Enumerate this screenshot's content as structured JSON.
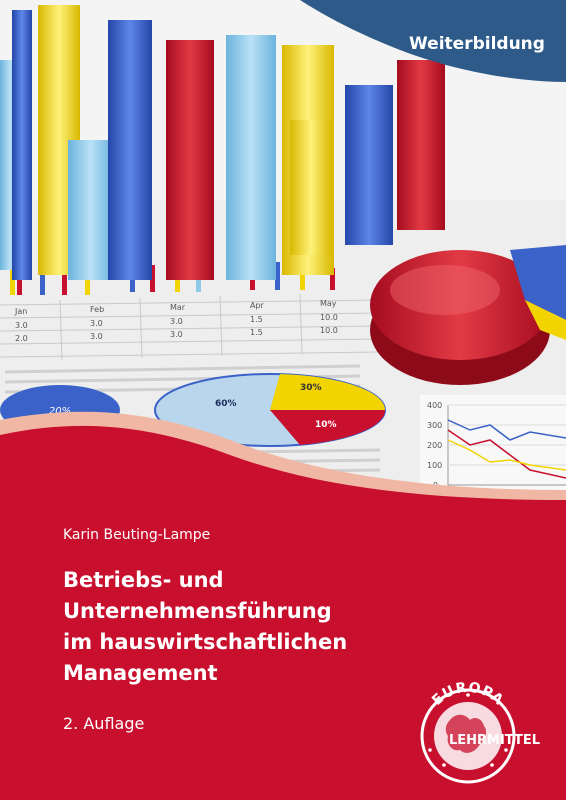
{
  "cover": {
    "series": "Weiterbildung",
    "author": "Karin Beuting-Lampe",
    "title_lines": [
      "Betriebs- und",
      "Unternehmensführung",
      "im hauswirtschaftlichen",
      "Management"
    ],
    "edition": "2. Auflage"
  },
  "publisher": {
    "logo_top": "EUROPA",
    "logo_bottom": "LEHRMITTEL"
  },
  "chart_data": [
    {
      "type": "pie",
      "values": [
        60,
        30,
        10
      ],
      "labels": [
        "60%",
        "30%",
        "10%"
      ]
    },
    {
      "type": "pie",
      "values": [
        20
      ],
      "labels": [
        "20%"
      ]
    },
    {
      "type": "table",
      "headers": [
        "Jan",
        "Feb",
        "Mar",
        "Apr",
        "May"
      ],
      "rows": [
        [
          "3.0",
          "3.0",
          "3.0",
          "1.5",
          "10.0"
        ],
        [
          "2.0",
          "3.0",
          "3.0",
          "1.5",
          "10.0"
        ]
      ]
    },
    {
      "type": "line",
      "ylim": [
        0,
        400
      ],
      "ticks": [
        0,
        100,
        200,
        300,
        400
      ]
    }
  ],
  "colors": {
    "red": "#c8102e",
    "blue": "#2e5a8a",
    "yellow": "#f2d400",
    "light_blue": "#8ec9e8",
    "deep_blue": "#3a62c9"
  }
}
